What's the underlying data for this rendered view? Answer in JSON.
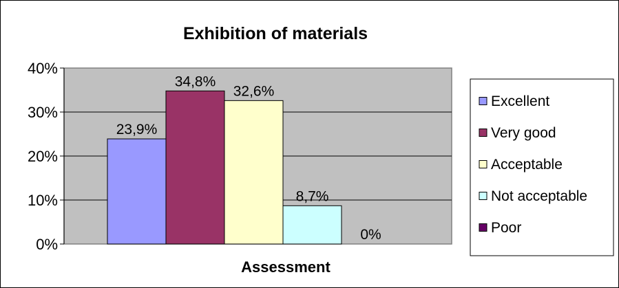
{
  "chart_data": {
    "type": "bar",
    "title": "Exhibition of materials",
    "xlabel": "Assessment",
    "ylabel": "",
    "ylim": [
      0,
      40
    ],
    "yticks": [
      "0%",
      "10%",
      "20%",
      "30%",
      "40%"
    ],
    "grid": true,
    "legend_position": "right",
    "plot_background": "#c0c0c0",
    "series": [
      {
        "name": "Excellent",
        "value": 23.9,
        "label": "23,9%",
        "color": "#9999ff"
      },
      {
        "name": "Very good",
        "value": 34.8,
        "label": "34,8%",
        "color": "#993366"
      },
      {
        "name": "Acceptable",
        "value": 32.6,
        "label": "32,6%",
        "color": "#ffffcc"
      },
      {
        "name": "Not acceptable",
        "value": 8.7,
        "label": "8,7%",
        "color": "#ccffff"
      },
      {
        "name": "Poor",
        "value": 0,
        "label": "0%",
        "color": "#660066"
      }
    ]
  }
}
